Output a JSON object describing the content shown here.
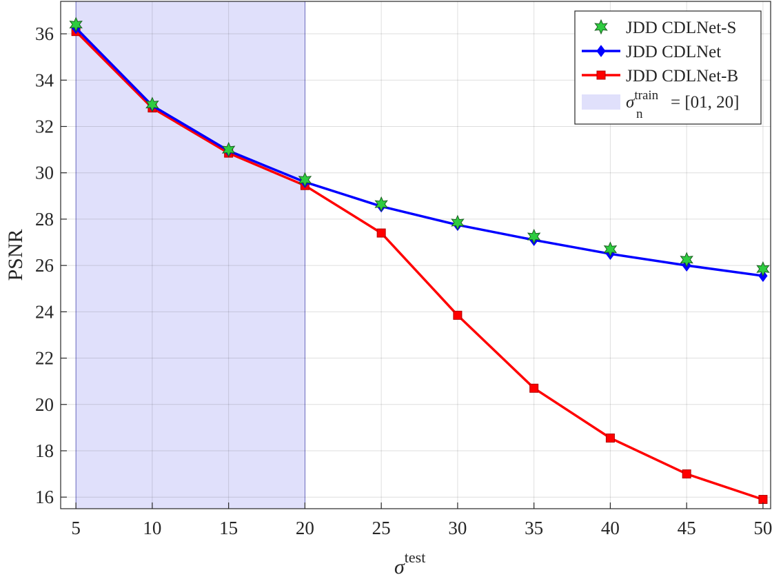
{
  "chart_data": {
    "type": "line",
    "x": [
      5,
      10,
      15,
      20,
      25,
      30,
      35,
      40,
      45,
      50
    ],
    "series": [
      {
        "name": "JDD CDLNet-S",
        "color": "#2ecc40",
        "marker": "star",
        "line": false,
        "values": [
          36.4,
          32.95,
          31.0,
          29.7,
          28.65,
          27.85,
          27.25,
          26.7,
          26.25,
          25.85
        ]
      },
      {
        "name": "JDD CDLNet",
        "color": "#0000ff",
        "marker": "diamond",
        "line": true,
        "values": [
          36.25,
          32.9,
          30.95,
          29.6,
          28.55,
          27.75,
          27.1,
          26.5,
          26.0,
          25.55
        ]
      },
      {
        "name": "JDD CDLNet-B",
        "color": "#ff0000",
        "marker": "square",
        "line": true,
        "values": [
          36.1,
          32.8,
          30.85,
          29.45,
          27.4,
          23.85,
          20.7,
          18.55,
          17.0,
          15.9
        ]
      }
    ],
    "shaded_region": {
      "x_range": [
        5,
        20
      ],
      "color": "#e0e0fb"
    },
    "legend_shade": {
      "pre": "σ",
      "sup": "train",
      "sub": "n",
      "post": "= [01, 20]"
    },
    "xlabel": {
      "base": "σ",
      "sup": "test"
    },
    "ylabel": "PSNR",
    "xlim": [
      4,
      50.5
    ],
    "ylim": [
      15.5,
      37.4
    ],
    "xticks": [
      5,
      10,
      15,
      20,
      25,
      30,
      35,
      40,
      45,
      50
    ],
    "yticks": [
      16,
      18,
      20,
      22,
      24,
      26,
      28,
      30,
      32,
      34,
      36
    ],
    "grid": true,
    "legend_position": "top-right"
  }
}
